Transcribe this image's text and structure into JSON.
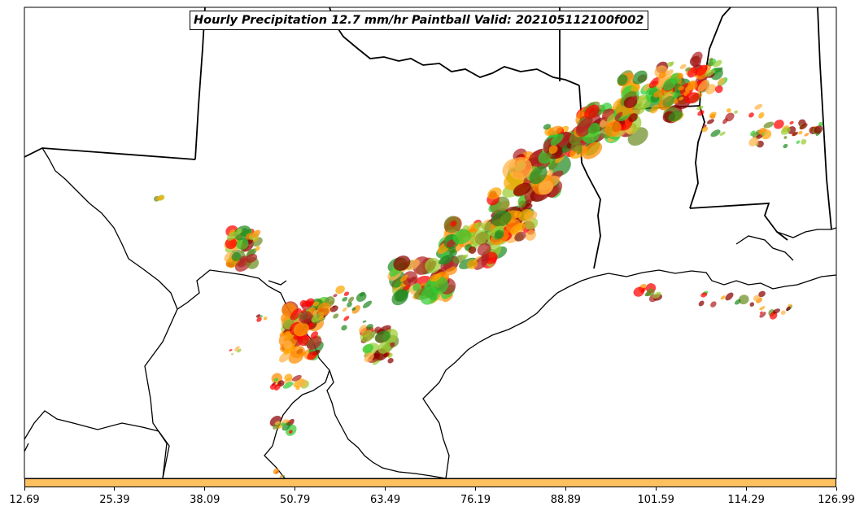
{
  "title": "Hourly Precipitation 12.7 mm/hr Paintball Valid: 202105112100f002",
  "colorbar": {
    "color": "#ffc060",
    "ticks": [
      "12.69",
      "25.39",
      "38.09",
      "50.79",
      "63.49",
      "76.19",
      "88.89",
      "101.59",
      "114.29",
      "126.99"
    ]
  },
  "member_colors": [
    "#ff8c00",
    "#ff0000",
    "#8b0000",
    "#228b22",
    "#32cd32",
    "#9acd32",
    "#ffa500",
    "#b22222",
    "#6b8e23",
    "#ffb347"
  ]
}
